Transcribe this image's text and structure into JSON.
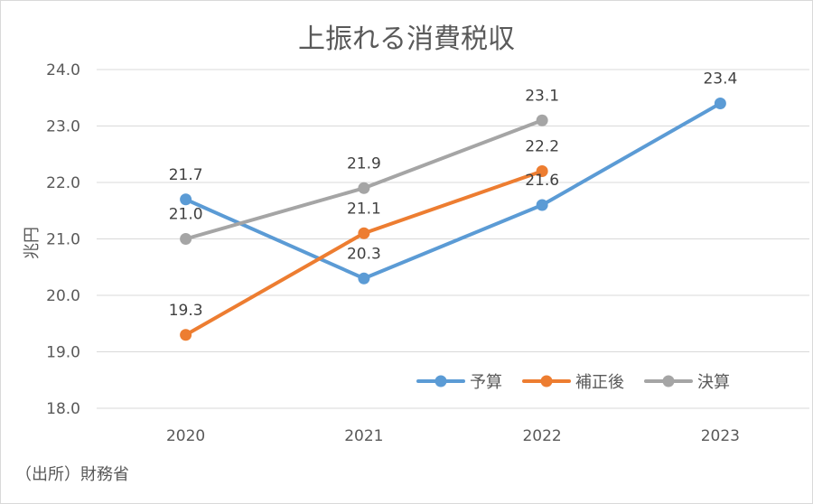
{
  "chart_data": {
    "type": "line",
    "title": "上振れる消費税収",
    "ylabel": "兆円",
    "xlabel": "",
    "ylim": [
      18.0,
      24.0
    ],
    "yticks": [
      "18.0",
      "19.0",
      "20.0",
      "21.0",
      "22.0",
      "23.0",
      "24.0"
    ],
    "categories": [
      "2020",
      "2021",
      "2022",
      "2023"
    ],
    "series": [
      {
        "name": "予算",
        "color": "#5b9bd5",
        "values": [
          21.7,
          20.3,
          21.6,
          23.4
        ],
        "labels": [
          "21.7",
          "20.3",
          "21.6",
          "23.4"
        ]
      },
      {
        "name": "補正後",
        "color": "#ed7d31",
        "values": [
          19.3,
          21.1,
          22.2,
          null
        ],
        "labels": [
          "19.3",
          "21.1",
          "22.2",
          ""
        ]
      },
      {
        "name": "決算",
        "color": "#a5a5a5",
        "values": [
          21.0,
          21.9,
          23.1,
          null
        ],
        "labels": [
          "21.0",
          "21.9",
          "23.1",
          ""
        ]
      }
    ],
    "grid": true,
    "legend": "bottom-right"
  },
  "source": "（出所）財務省"
}
